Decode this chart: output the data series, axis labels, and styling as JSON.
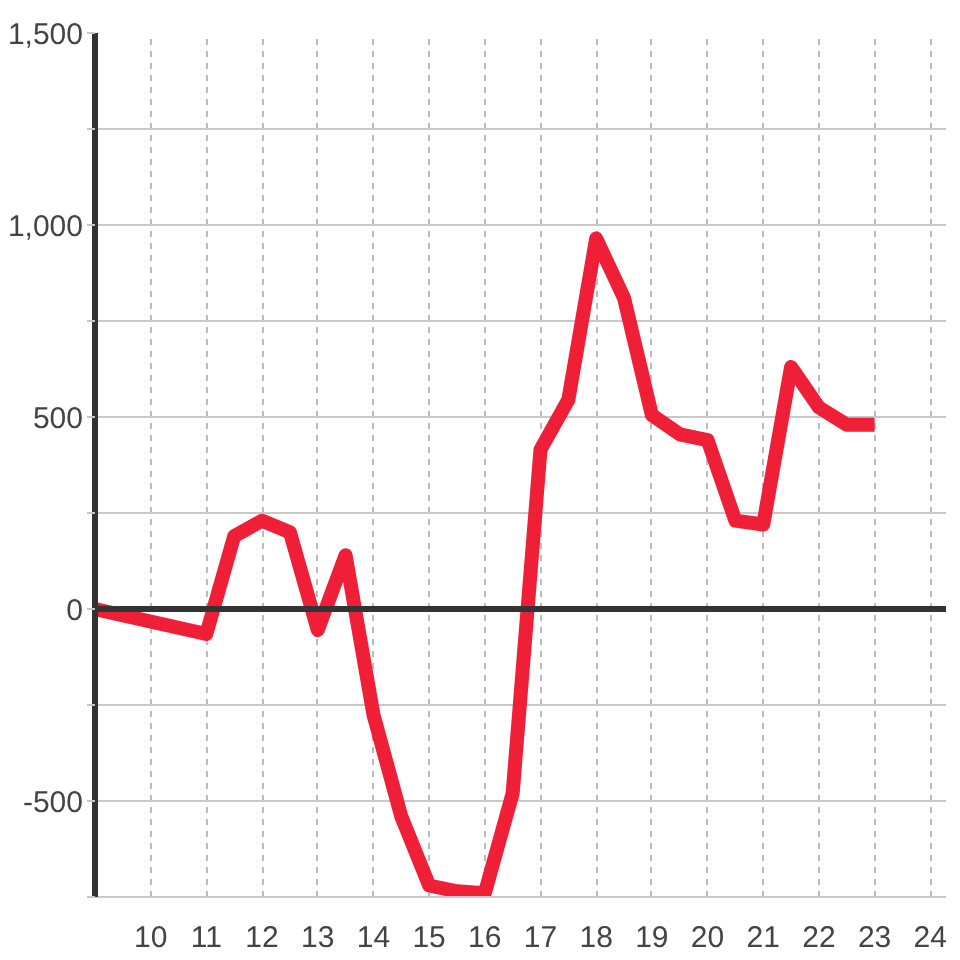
{
  "chart_data": {
    "type": "line",
    "x": [
      9,
      11,
      11.5,
      12,
      12.5,
      13,
      13.5,
      14,
      14.5,
      15,
      15.5,
      16,
      16.5,
      17,
      17.5,
      18,
      18.5,
      19,
      19.5,
      20,
      20.5,
      21,
      21.5,
      22,
      22.5,
      23
    ],
    "values": [
      0,
      -65,
      190,
      230,
      200,
      -55,
      140,
      -275,
      -540,
      -720,
      -735,
      -740,
      -480,
      415,
      545,
      965,
      810,
      505,
      455,
      440,
      230,
      220,
      630,
      525,
      480,
      480
    ],
    "color": "#ee1f36",
    "xlim": [
      9,
      24.3
    ],
    "xticks": [
      10,
      11,
      12,
      13,
      14,
      15,
      16,
      17,
      18,
      19,
      20,
      21,
      22,
      23,
      24
    ],
    "ylim": [
      -750,
      1500
    ],
    "yticks": [
      {
        "value": -750,
        "label": null
      },
      -500,
      {
        "value": -250,
        "label": null
      },
      0,
      {
        "value": 250,
        "label": null
      },
      500,
      {
        "value": 750,
        "label": null
      },
      {
        "value": 1000,
        "label": "1,000"
      },
      {
        "value": 1250,
        "label": null
      },
      {
        "value": 1500,
        "label": "1,500"
      }
    ],
    "grid": true,
    "ref_lines": [
      {
        "axis": "y",
        "value": 0,
        "color": "#333333"
      }
    ]
  }
}
